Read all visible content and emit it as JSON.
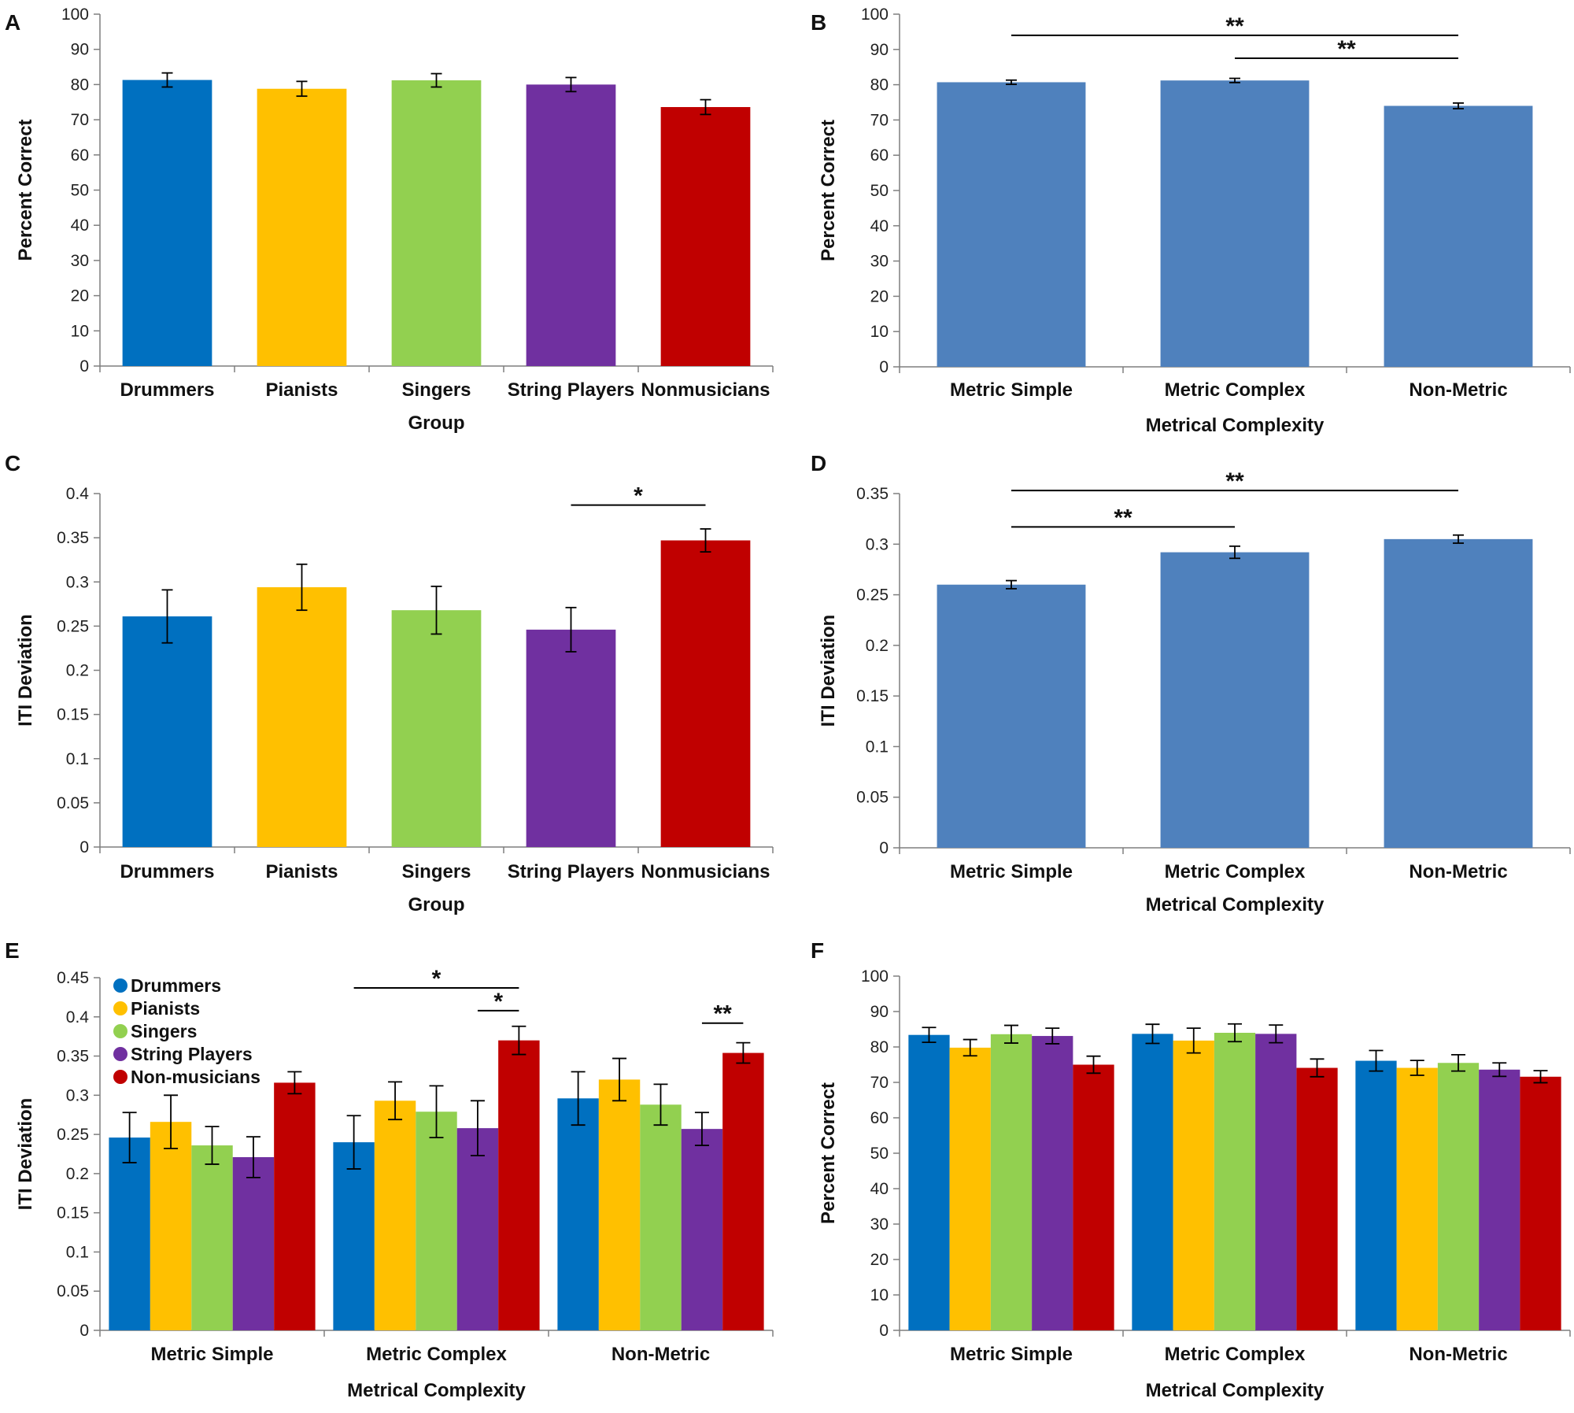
{
  "colors": {
    "drummers": "#0070C0",
    "pianists": "#FFC000",
    "singers": "#92D050",
    "string_players": "#7030A0",
    "nonmusicians": "#C00000",
    "complexity": "#4F81BD",
    "axis": "#7f7f7f"
  },
  "chart_data": [
    {
      "panel": "A",
      "type": "bar",
      "categories": [
        "Drummers",
        "Pianists",
        "Singers",
        "String Players",
        "Nonmusicians"
      ],
      "values": [
        81.3,
        78.8,
        81.2,
        80.0,
        73.6
      ],
      "errors": [
        2.0,
        2.1,
        1.9,
        2.0,
        2.1
      ],
      "bar_colors": [
        "drummers",
        "pianists",
        "singers",
        "string_players",
        "nonmusicians"
      ],
      "xlabel": "Group",
      "ylabel": "Percent Correct",
      "ylim": [
        0,
        100
      ],
      "yticks": [
        0,
        10,
        20,
        30,
        40,
        50,
        60,
        70,
        80,
        90,
        100
      ],
      "ytick_labels": [
        "0",
        "10",
        "20",
        "30",
        "40",
        "50",
        "60",
        "70",
        "80",
        "90",
        "100"
      ],
      "significance": []
    },
    {
      "panel": "B",
      "type": "bar",
      "categories": [
        "Metric Simple",
        "Metric Complex",
        "Non-Metric"
      ],
      "values": [
        80.7,
        81.2,
        74.0
      ],
      "errors": [
        0.6,
        0.6,
        0.8
      ],
      "bar_colors": [
        "complexity",
        "complexity",
        "complexity"
      ],
      "xlabel": "Metrical Complexity",
      "ylabel": "Percent Correct",
      "ylim": [
        0,
        100
      ],
      "yticks": [
        0,
        10,
        20,
        30,
        40,
        50,
        60,
        70,
        80,
        90,
        100
      ],
      "ytick_labels": [
        "0",
        "10",
        "20",
        "30",
        "40",
        "50",
        "60",
        "70",
        "80",
        "90",
        "100"
      ],
      "significance": [
        {
          "from": 0,
          "to": 2,
          "level": 94,
          "label": "**"
        },
        {
          "from": 1,
          "to": 2,
          "level": 87.5,
          "label": "**"
        }
      ]
    },
    {
      "panel": "C",
      "type": "bar",
      "categories": [
        "Drummers",
        "Pianists",
        "Singers",
        "String Players",
        "Nonmusicians"
      ],
      "values": [
        0.261,
        0.294,
        0.268,
        0.246,
        0.347
      ],
      "errors": [
        0.03,
        0.026,
        0.027,
        0.025,
        0.013
      ],
      "bar_colors": [
        "drummers",
        "pianists",
        "singers",
        "string_players",
        "nonmusicians"
      ],
      "xlabel": "Group",
      "ylabel": "ITI Deviation",
      "ylim": [
        0,
        0.4
      ],
      "yticks": [
        0,
        0.05,
        0.1,
        0.15,
        0.2,
        0.25,
        0.3,
        0.35,
        0.4
      ],
      "ytick_labels": [
        "0",
        "0.05",
        "0.1",
        "0.15",
        "0.2",
        "0.25",
        "0.3",
        "0.35",
        "0.4"
      ],
      "significance": [
        {
          "from": 3,
          "to": 4,
          "level": 0.387,
          "label": "*"
        }
      ]
    },
    {
      "panel": "D",
      "type": "bar",
      "categories": [
        "Metric Simple",
        "Metric Complex",
        "Non-Metric"
      ],
      "values": [
        0.26,
        0.292,
        0.305
      ],
      "errors": [
        0.004,
        0.006,
        0.004
      ],
      "bar_colors": [
        "complexity",
        "complexity",
        "complexity"
      ],
      "xlabel": "Metrical Complexity",
      "ylabel": "ITI Deviation",
      "ylim": [
        0,
        0.35
      ],
      "yticks": [
        0,
        0.05,
        0.1,
        0.15,
        0.2,
        0.25,
        0.3,
        0.35
      ],
      "ytick_labels": [
        "0",
        "0.05",
        "0.1",
        "0.15",
        "0.2",
        "0.25",
        "0.3",
        "0.35"
      ],
      "significance": [
        {
          "from": 0,
          "to": 2,
          "level": 0.353,
          "label": "**"
        },
        {
          "from": 0,
          "to": 1,
          "level": 0.317,
          "label": "**"
        }
      ]
    },
    {
      "panel": "E",
      "type": "grouped-bar",
      "categories": [
        "Metric Simple",
        "Metric Complex",
        "Non-Metric"
      ],
      "series": [
        {
          "name": "Drummers",
          "color": "drummers",
          "values": [
            0.246,
            0.24,
            0.296
          ],
          "errors": [
            0.032,
            0.034,
            0.034
          ]
        },
        {
          "name": "Pianists",
          "color": "pianists",
          "values": [
            0.266,
            0.293,
            0.32
          ],
          "errors": [
            0.034,
            0.024,
            0.027
          ]
        },
        {
          "name": "Singers",
          "color": "singers",
          "values": [
            0.236,
            0.279,
            0.288
          ],
          "errors": [
            0.024,
            0.033,
            0.026
          ]
        },
        {
          "name": "String Players",
          "color": "string_players",
          "values": [
            0.221,
            0.258,
            0.257
          ],
          "errors": [
            0.026,
            0.035,
            0.021
          ]
        },
        {
          "name": "Non-musicians",
          "color": "nonmusicians",
          "values": [
            0.316,
            0.37,
            0.354
          ],
          "errors": [
            0.014,
            0.018,
            0.013
          ]
        }
      ],
      "xlabel": "Metrical Complexity",
      "ylabel": "ITI Deviation",
      "ylim": [
        0,
        0.45
      ],
      "yticks": [
        0,
        0.05,
        0.1,
        0.15,
        0.2,
        0.25,
        0.3,
        0.35,
        0.4,
        0.45
      ],
      "ytick_labels": [
        "0",
        "0.05",
        "0.1",
        "0.15",
        "0.2",
        "0.25",
        "0.3",
        "0.35",
        "0.4",
        "0.45"
      ],
      "legend": "top-left",
      "significance": [
        {
          "cat": 1,
          "from": 0,
          "to": 4,
          "level": 0.437,
          "label": "*"
        },
        {
          "cat": 1,
          "from": 3,
          "to": 4,
          "level": 0.408,
          "label": "*"
        },
        {
          "cat": 2,
          "from": 3,
          "to": 4,
          "level": 0.392,
          "label": "**"
        }
      ]
    },
    {
      "panel": "F",
      "type": "grouped-bar",
      "categories": [
        "Metric Simple",
        "Metric Complex",
        "Non-Metric"
      ],
      "series": [
        {
          "name": "Drummers",
          "color": "drummers",
          "values": [
            83.4,
            83.7,
            76.1
          ],
          "errors": [
            2.1,
            2.7,
            2.9
          ]
        },
        {
          "name": "Pianists",
          "color": "pianists",
          "values": [
            79.8,
            81.8,
            74.1
          ],
          "errors": [
            2.3,
            3.5,
            2.1
          ]
        },
        {
          "name": "Singers",
          "color": "singers",
          "values": [
            83.6,
            84.0,
            75.5
          ],
          "errors": [
            2.5,
            2.5,
            2.3
          ]
        },
        {
          "name": "String Players",
          "color": "string_players",
          "values": [
            83.1,
            83.7,
            73.6
          ],
          "errors": [
            2.2,
            2.5,
            1.9
          ]
        },
        {
          "name": "Non-musicians",
          "color": "nonmusicians",
          "values": [
            75.0,
            74.1,
            71.6
          ],
          "errors": [
            2.4,
            2.5,
            1.7
          ]
        }
      ],
      "xlabel": "Metrical Complexity",
      "ylabel": "Percent Correct",
      "ylim": [
        0,
        100
      ],
      "yticks": [
        0,
        10,
        20,
        30,
        40,
        50,
        60,
        70,
        80,
        90,
        100
      ],
      "ytick_labels": [
        "0",
        "10",
        "20",
        "30",
        "40",
        "50",
        "60",
        "70",
        "80",
        "90",
        "100"
      ],
      "significance": []
    }
  ]
}
